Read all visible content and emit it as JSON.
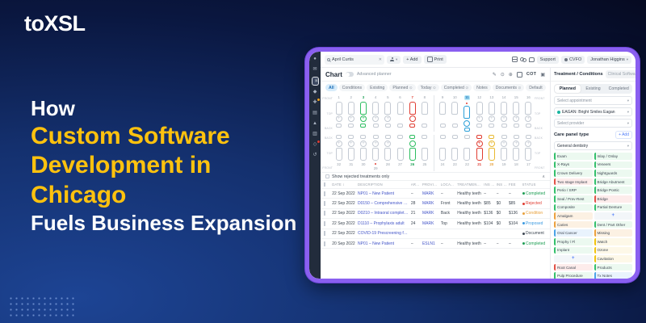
{
  "banner": {
    "logo": "toXSL",
    "title_line1": "How",
    "title_line2": "Custom Software",
    "title_line3": "Development in Chicago",
    "title_line4": "Fuels Business Expansion",
    "accent_color": "#FFC20E",
    "background_color": "#0d1f52"
  },
  "dashboard": {
    "frame_color": "#8A5FF0",
    "sidebar_icons": [
      "user-icon",
      "chat-icon",
      "folder-icon",
      "settings-icon",
      "alert-icon",
      "briefcase-icon",
      "warning-icon",
      "document-icon",
      "inbox-icon",
      "history-icon"
    ],
    "topbar": {
      "search_value": "April Curtis",
      "add_label": "+ Add",
      "print_label": "Print",
      "support_label": "Support",
      "cvfo_label": "CVFO",
      "user_name": "Jonathan Higgins"
    },
    "chart_header": {
      "title": "Chart",
      "planner_label": "Advanced planner",
      "cot_label": "COT"
    },
    "tabs": [
      {
        "label": "All",
        "clock": false,
        "active": true
      },
      {
        "label": "Conditions",
        "clock": false,
        "active": false
      },
      {
        "label": "Existing",
        "clock": false,
        "active": false
      },
      {
        "label": "Planned",
        "clock": true,
        "active": false
      },
      {
        "label": "Today",
        "clock": true,
        "active": false
      },
      {
        "label": "Completed",
        "clock": true,
        "active": false
      },
      {
        "label": "Notes",
        "clock": false,
        "active": false
      },
      {
        "label": "Documents",
        "clock": true,
        "active": false
      },
      {
        "label": "Default",
        "clock": false,
        "active": false
      }
    ],
    "teeth": {
      "row_labels_top": [
        "FRONT",
        "TOP",
        "BACK"
      ],
      "row_labels_bottom": [
        "BACK",
        "TOP",
        "FRONT"
      ],
      "top": [
        {
          "n": "1"
        },
        {
          "n": "2"
        },
        {
          "n": "3",
          "c": "green"
        },
        {
          "n": "4"
        },
        {
          "n": "5"
        },
        {
          "n": "6"
        },
        {
          "n": "7",
          "c": "red"
        },
        {
          "n": "8"
        },
        {
          "n": "9"
        },
        {
          "n": "10"
        },
        {
          "n": "11",
          "c": "blue",
          "badge": true,
          "nbg": true
        },
        {
          "n": "12"
        },
        {
          "n": "13"
        },
        {
          "n": "14"
        },
        {
          "n": "15"
        },
        {
          "n": "16"
        }
      ],
      "bottom": [
        {
          "n": "32"
        },
        {
          "n": "31"
        },
        {
          "n": "30"
        },
        {
          "n": "29",
          "badge": true
        },
        {
          "n": "28"
        },
        {
          "n": "27"
        },
        {
          "n": "26",
          "c": "green"
        },
        {
          "n": "25"
        },
        {
          "n": "24"
        },
        {
          "n": "23"
        },
        {
          "n": "22"
        },
        {
          "n": "21",
          "c": "red"
        },
        {
          "n": "20",
          "c": "yellow"
        },
        {
          "n": "19"
        },
        {
          "n": "18"
        },
        {
          "n": "17"
        }
      ]
    },
    "filter_label": "Show rejected treatments only",
    "table": {
      "headers": [
        "DATE",
        "DESCRIPTION",
        "AREA",
        "PROVIDER",
        "LOCATION",
        "TREATMENT PLAN",
        "INS OUT",
        "INS EST",
        "FEE",
        "STATUS"
      ],
      "rows": [
        {
          "date": "22 Sep 2022",
          "desc": "NP01 – New Patient",
          "area": "–",
          "provider": "MARK",
          "location": "–",
          "plan": "Healthy teeth",
          "ins_out": "–",
          "ins_est": "–",
          "fee": "–",
          "status": "Completed",
          "status_color": "green"
        },
        {
          "date": "22 Sep 2022",
          "desc": "D0150 – Comprehensive ora...",
          "area": "28",
          "provider": "MARK",
          "location": "Front",
          "plan": "Healthy teeth",
          "ins_out": "$85",
          "ins_est": "$0",
          "fee": "$85",
          "status": "Rejected",
          "status_color": "red"
        },
        {
          "date": "22 Sep 2022",
          "desc": "D0210 – Intraoral complete ...",
          "area": "21",
          "provider": "MARK",
          "location": "Back",
          "plan": "Healthy teeth",
          "ins_out": "$136",
          "ins_est": "$0",
          "fee": "$136",
          "status": "Condition",
          "status_color": "orange"
        },
        {
          "date": "22 Sep 2022",
          "desc": "D1110 – Prophylaxis adult",
          "area": "24",
          "provider": "MARK",
          "location": "Top",
          "plan": "Healthy teeth",
          "ins_out": "$104",
          "ins_est": "$0",
          "fee": "$104",
          "status": "Proposed",
          "status_color": "blue"
        },
        {
          "date": "22 Sep 2022",
          "desc": "COVID-19 Prescreening form",
          "area": "",
          "provider": "",
          "location": "",
          "plan": "",
          "ins_out": "",
          "ins_est": "",
          "fee": "",
          "status": "Document",
          "status_color": "dark"
        },
        {
          "date": "20 Sep 2022",
          "desc": "NP01 – New Patient",
          "area": "–",
          "provider": "ESLN1",
          "location": "–",
          "plan": "Healthy teeth",
          "ins_out": "–",
          "ins_est": "–",
          "fee": "–",
          "status": "Completed",
          "status_color": "green"
        }
      ]
    },
    "panel": {
      "tab_active": "Treatment / Conditions",
      "tab_inactive": "Clinical Software",
      "segments": [
        "Planned",
        "Existing",
        "Completed"
      ],
      "segment_active": "Planned",
      "select_appointment": "Select appointment",
      "select_clinic": "EAGAN: Bright Smiles Eagan",
      "select_provider": "Select provider",
      "care_panel_label": "Care panel type",
      "add_label": "+ Add",
      "type_select": "General dentistry",
      "chips_left": [
        {
          "t": "Exam",
          "c": "green"
        },
        {
          "t": "X-Rays",
          "c": "green"
        },
        {
          "t": "Crown Delivery",
          "c": "green"
        },
        {
          "t": "Two stage Implant",
          "c": "red"
        },
        {
          "t": "Perio / SRP",
          "c": "green"
        },
        {
          "t": "Seal / Prev-Rest",
          "c": "green"
        },
        {
          "t": "Composite",
          "c": "green"
        },
        {
          "t": "Amalgam",
          "c": "orange"
        },
        {
          "t": "Caries",
          "c": "orange"
        },
        {
          "t": "Oral Cancer",
          "c": "blue"
        },
        {
          "t": "Prophy / Fl",
          "c": "green"
        },
        {
          "t": "Implant",
          "c": "green"
        },
        {
          "t": "+",
          "c": "plus"
        },
        {
          "t": "Root Canal",
          "c": "red"
        },
        {
          "t": "Pulp Procedure",
          "c": "green"
        }
      ],
      "chips_right": [
        {
          "t": "Inlay / Onlay",
          "c": "green"
        },
        {
          "t": "Veneers",
          "c": "green"
        },
        {
          "t": "Nightguards",
          "c": "green"
        },
        {
          "t": "Bridge Abutment",
          "c": "green"
        },
        {
          "t": "Bridge Pontic",
          "c": "green"
        },
        {
          "t": "Bridge",
          "c": "red"
        },
        {
          "t": "Partial Denture",
          "c": "green"
        },
        {
          "t": "+",
          "c": "plus"
        },
        {
          "t": "Dent / Part Other",
          "c": "green"
        },
        {
          "t": "Missing",
          "c": "orange"
        },
        {
          "t": "Watch",
          "c": "yellow"
        },
        {
          "t": "Ozone",
          "c": "yellow"
        },
        {
          "t": "Cavitation",
          "c": "yellow"
        },
        {
          "t": "Products",
          "c": "green"
        },
        {
          "t": "Tx Notes",
          "c": "blue"
        }
      ]
    }
  }
}
